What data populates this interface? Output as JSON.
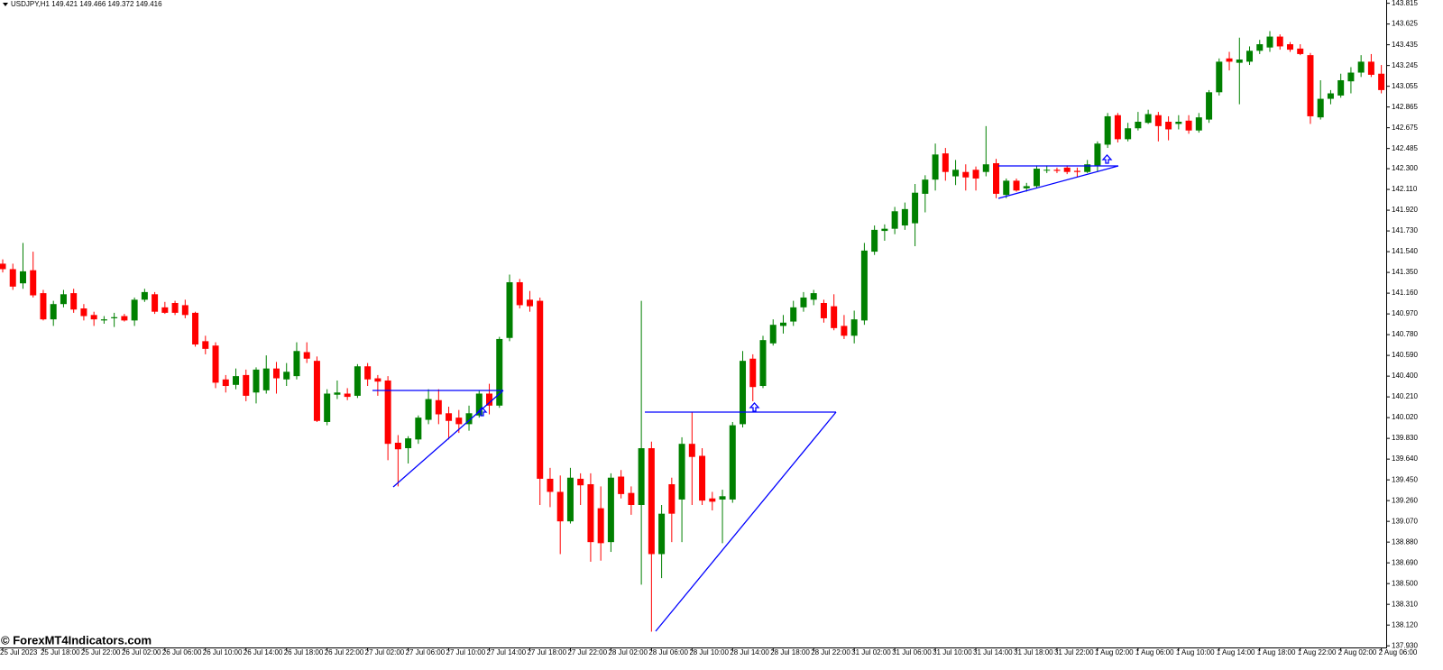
{
  "chart_data": {
    "type": "candlestick",
    "title": "USDJPY,H1  149.421 149.466 149.372 149.416",
    "annotation": "© ForexMT4Indicators.com",
    "up_color": "#008000",
    "down_color": "#ff0000",
    "wick_color": "#000000",
    "categories": [
      "25 Jul 2023",
      null,
      null,
      null,
      "25 Jul 18:00",
      null,
      null,
      null,
      "25 Jul 22:00",
      null,
      null,
      null,
      "26 Jul 02:00",
      null,
      null,
      null,
      "26 Jul 06:00",
      null,
      null,
      null,
      "26 Jul 10:00",
      null,
      null,
      null,
      "26 Jul 14:00",
      null,
      null,
      null,
      "26 Jul 18:00",
      null,
      null,
      null,
      "26 Jul 22:00",
      null,
      null,
      null,
      "27 Jul 02:00",
      null,
      null,
      null,
      "27 Jul 06:00",
      null,
      null,
      null,
      "27 Jul 10:00",
      null,
      null,
      null,
      "27 Jul 14:00",
      null,
      null,
      null,
      "27 Jul 18:00",
      null,
      null,
      null,
      "27 Jul 22:00",
      null,
      null,
      null,
      "28 Jul 02:00",
      null,
      null,
      null,
      "28 Jul 06:00",
      null,
      null,
      null,
      "28 Jul 10:00",
      null,
      null,
      null,
      "28 Jul 14:00",
      null,
      null,
      null,
      "28 Jul 18:00",
      null,
      null,
      null,
      "28 Jul 22:00",
      null,
      null,
      null,
      "31 Jul 02:00",
      null,
      null,
      null,
      "31 Jul 06:00",
      null,
      null,
      null,
      "31 Jul 10:00",
      null,
      null,
      null,
      "31 Jul 14:00",
      null,
      null,
      null,
      "31 Jul 18:00",
      null,
      null,
      null,
      "31 Jul 22:00",
      null,
      null,
      null,
      "1 Aug 02:00",
      null,
      null,
      null,
      "1 Aug 06:00",
      null,
      null,
      null,
      "1 Aug 10:00",
      null,
      null,
      null,
      "1 Aug 14:00",
      null,
      null,
      null,
      "1 Aug 18:00",
      null,
      null,
      null,
      "1 Aug 22:00",
      null,
      null,
      null,
      "2 Aug 02:00",
      null,
      null,
      null,
      "2 Aug 06:00"
    ],
    "open": [
      141.43,
      141.38,
      141.25,
      141.37,
      141.16,
      140.92,
      141.06,
      141.16,
      141.02,
      140.96,
      140.91,
      140.93,
      140.95,
      140.91,
      141.1,
      141.15,
      141.03,
      141.07,
      141.05,
      140.98,
      140.72,
      140.68,
      140.37,
      140.32,
      140.41,
      140.25,
      140.27,
      140.47,
      140.37,
      140.4,
      140.62,
      140.54,
      139.98,
      140.23,
      140.24,
      140.22,
      140.49,
      140.38,
      140.36,
      139.79,
      139.74,
      139.82,
      140.0,
      140.18,
      140.06,
      140.02,
      139.96,
      140.04,
      140.24,
      140.13,
      140.75,
      141.26,
      141.1,
      141.09,
      139.46,
      139.34,
      139.07,
      139.46,
      139.41,
      139.19,
      138.88,
      139.48,
      139.33,
      139.22,
      139.74,
      138.77,
      139.41,
      139.27,
      139.78,
      139.67,
      139.28,
      139.27,
      139.27,
      139.96,
      140.56,
      140.31,
      140.7,
      140.86,
      140.9,
      141.03,
      141.1,
      141.07,
      141.04,
      140.86,
      140.77,
      140.91,
      141.54,
      141.73,
      141.75,
      141.78,
      141.8,
      142.07,
      142.2,
      142.44,
      142.23,
      142.27,
      142.29,
      142.27,
      142.35,
      142.06,
      142.19,
      142.12,
      142.14,
      142.29,
      142.29,
      142.31,
      142.28,
      142.27,
      142.33,
      142.52,
      142.79,
      142.57,
      142.67,
      142.72,
      142.79,
      142.73,
      142.71,
      142.74,
      142.65,
      142.75,
      143.0,
      143.31,
      143.27,
      143.28,
      143.38,
      143.41,
      143.51,
      143.44,
      143.4,
      143.34,
      142.77,
      142.94,
      142.97,
      143.1,
      143.18,
      143.28,
      143.17
    ],
    "high": [
      141.47,
      141.43,
      141.62,
      141.54,
      141.19,
      141.09,
      141.19,
      141.2,
      141.06,
      140.99,
      140.95,
      140.98,
      140.97,
      141.12,
      141.2,
      141.17,
      141.08,
      141.09,
      141.1,
      140.99,
      140.77,
      140.71,
      140.41,
      140.47,
      140.46,
      140.48,
      140.59,
      140.53,
      140.52,
      140.71,
      140.71,
      140.58,
      140.28,
      140.36,
      140.29,
      140.51,
      140.52,
      140.41,
      140.4,
      139.86,
      139.85,
      140.04,
      140.28,
      140.28,
      140.12,
      140.09,
      140.13,
      140.27,
      140.33,
      140.76,
      141.33,
      141.29,
      141.18,
      141.12,
      139.56,
      139.49,
      139.56,
      139.51,
      139.51,
      139.39,
      139.51,
      139.54,
      139.39,
      141.09,
      139.8,
      139.22,
      139.47,
      139.84,
      140.07,
      139.74,
      139.34,
      139.36,
      139.98,
      140.63,
      140.6,
      140.77,
      140.92,
      140.96,
      141.09,
      141.17,
      141.19,
      141.1,
      141.15,
      140.96,
      141.0,
      141.62,
      141.78,
      141.79,
      141.95,
      141.99,
      142.16,
      142.24,
      142.53,
      142.49,
      142.38,
      142.34,
      142.32,
      142.69,
      142.39,
      142.21,
      142.21,
      142.17,
      142.33,
      142.33,
      142.31,
      142.33,
      142.31,
      142.38,
      142.55,
      142.81,
      142.81,
      142.72,
      142.82,
      142.84,
      142.82,
      142.78,
      142.79,
      142.79,
      142.81,
      143.02,
      143.31,
      143.37,
      143.5,
      143.42,
      143.48,
      143.56,
      143.53,
      143.46,
      143.44,
      143.36,
      143.11,
      143.02,
      143.17,
      143.23,
      143.34,
      143.35,
      143.25
    ],
    "low": [
      141.35,
      141.19,
      141.2,
      141.12,
      140.91,
      140.86,
      141.03,
      140.98,
      140.91,
      140.86,
      140.88,
      140.85,
      140.9,
      140.86,
      141.08,
      140.97,
      140.97,
      140.96,
      140.93,
      140.67,
      140.6,
      140.29,
      140.25,
      140.28,
      140.17,
      140.15,
      140.24,
      140.24,
      140.31,
      140.37,
      140.52,
      139.98,
      139.95,
      140.19,
      140.18,
      140.2,
      140.31,
      140.22,
      139.63,
      139.39,
      139.6,
      139.78,
      139.96,
      139.96,
      139.82,
      139.88,
      139.9,
      140.02,
      140.05,
      140.11,
      140.72,
      141.02,
      140.99,
      139.22,
      139.2,
      138.77,
      139.05,
      139.22,
      138.7,
      138.71,
      138.79,
      139.28,
      139.13,
      138.49,
      138.06,
      138.55,
      138.88,
      138.88,
      139.22,
      139.22,
      139.17,
      138.87,
      139.24,
      139.93,
      140.17,
      140.29,
      140.68,
      140.79,
      140.86,
      140.99,
      141.05,
      140.89,
      140.82,
      140.74,
      140.7,
      140.87,
      141.51,
      141.64,
      141.7,
      141.74,
      141.59,
      141.9,
      142.1,
      142.19,
      142.15,
      142.1,
      142.1,
      142.23,
      142.03,
      142.03,
      142.09,
      142.09,
      142.12,
      142.26,
      142.26,
      142.25,
      142.22,
      142.26,
      142.27,
      142.49,
      142.54,
      142.55,
      142.65,
      142.71,
      142.55,
      142.56,
      142.66,
      142.62,
      142.63,
      142.72,
      142.97,
      143.2,
      142.89,
      143.25,
      143.35,
      143.37,
      143.39,
      143.37,
      143.34,
      142.71,
      142.75,
      142.89,
      142.95,
      142.99,
      143.14,
      143.14,
      142.99
    ],
    "close": [
      141.38,
      141.22,
      141.36,
      141.14,
      140.92,
      141.06,
      141.15,
      141.01,
      140.95,
      140.92,
      140.92,
      140.94,
      140.91,
      141.1,
      141.17,
      140.99,
      140.98,
      140.98,
      140.96,
      140.69,
      140.65,
      140.34,
      140.31,
      140.4,
      140.22,
      140.46,
      140.47,
      140.38,
      140.44,
      140.63,
      140.56,
      139.99,
      140.24,
      140.25,
      140.21,
      140.49,
      140.37,
      140.35,
      139.78,
      139.73,
      139.83,
      140.02,
      140.19,
      140.05,
      139.99,
      139.96,
      140.06,
      140.24,
      140.13,
      140.74,
      141.26,
      141.05,
      141.04,
      139.46,
      139.34,
      139.07,
      139.47,
      139.4,
      138.88,
      138.87,
      139.47,
      139.32,
      139.22,
      139.74,
      138.77,
      139.14,
      139.14,
      139.78,
      139.66,
      139.26,
      139.25,
      139.3,
      139.95,
      140.54,
      140.3,
      140.73,
      140.87,
      140.89,
      141.03,
      141.12,
      141.16,
      140.93,
      140.84,
      140.77,
      140.92,
      141.55,
      141.74,
      141.75,
      141.91,
      141.93,
      142.08,
      142.2,
      142.43,
      142.27,
      142.29,
      142.22,
      142.21,
      142.34,
      142.07,
      142.19,
      142.1,
      142.14,
      142.3,
      142.29,
      142.28,
      142.27,
      142.27,
      142.34,
      142.53,
      142.78,
      142.57,
      142.67,
      142.73,
      142.8,
      142.69,
      142.66,
      142.73,
      142.65,
      142.77,
      143.0,
      143.28,
      143.28,
      143.3,
      143.38,
      143.44,
      143.51,
      143.42,
      143.39,
      143.35,
      142.78,
      142.94,
      142.99,
      143.11,
      143.18,
      143.28,
      143.16,
      143.02
    ],
    "ylim": [
      137.915,
      143.845
    ],
    "yticks": [
      143.815,
      143.625,
      143.435,
      143.245,
      143.055,
      142.865,
      142.675,
      142.485,
      {
        "value": 142.3,
        "label": "142.300"
      },
      {
        "value": 142.11,
        "label": "142.110"
      },
      {
        "value": 141.92,
        "label": "141.920"
      },
      {
        "value": 141.73,
        "label": "141.730"
      },
      {
        "value": 141.54,
        "label": "141.540"
      },
      {
        "value": 141.35,
        "label": "141.350"
      },
      {
        "value": 141.16,
        "label": "141.160"
      },
      {
        "value": 140.97,
        "label": "140.970"
      },
      {
        "value": 140.78,
        "label": "140.780"
      },
      {
        "value": 140.59,
        "label": "140.590"
      },
      {
        "value": 140.4,
        "label": "140.400"
      },
      {
        "value": 140.21,
        "label": "140.210"
      },
      {
        "value": 140.02,
        "label": "140.020"
      },
      {
        "value": 139.83,
        "label": "139.830"
      },
      {
        "value": 139.64,
        "label": "139.640"
      },
      {
        "value": 139.45,
        "label": "139.450"
      },
      {
        "value": 139.26,
        "label": "139.260"
      },
      {
        "value": 139.07,
        "label": "139.070"
      },
      {
        "value": 138.88,
        "label": "138.880"
      },
      {
        "value": 138.69,
        "label": "138.690"
      },
      {
        "value": 138.5,
        "label": "138.500"
      },
      {
        "value": 138.31,
        "label": "138.310"
      },
      {
        "value": 138.12,
        "label": "138.120"
      },
      {
        "value": 137.93,
        "label": "137.930"
      }
    ],
    "grid": false
  }
}
